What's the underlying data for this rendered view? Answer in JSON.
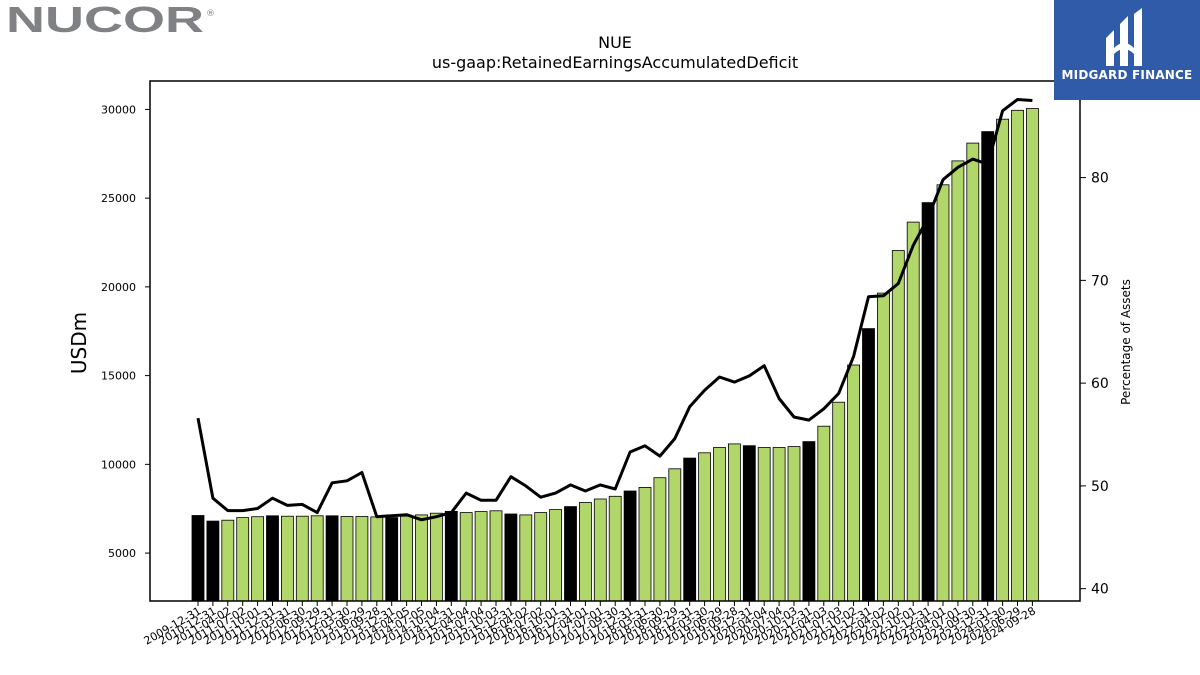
{
  "brand": {
    "left_logo_text": "NUCOR",
    "left_logo_mark": "®",
    "right_logo_text": "MIDGARD FINANCE"
  },
  "colors": {
    "bar_green": "#b1d66a",
    "bar_black": "#000000",
    "line": "#000000",
    "logo_blue": "#2f5ba8",
    "logo_grey": "#7f8185"
  },
  "chart_data": {
    "type": "bar",
    "title": "NUE",
    "subtitle": "us-gaap:RetainedEarningsAccumulatedDeficit",
    "ylabel": "USDm",
    "y2label": "Percentage of Assets",
    "ylim": [
      2300,
      31600
    ],
    "y2lim": [
      38.8,
      89.4
    ],
    "yticks": [
      5000,
      10000,
      15000,
      20000,
      25000,
      30000
    ],
    "y2ticks": [
      40,
      50,
      60,
      70,
      80
    ],
    "categories": [
      "2009-12-31",
      "2010-12-31",
      "2011-04-02",
      "2011-07-02",
      "2011-10-01",
      "2011-12-31",
      "2012-03-31",
      "2012-06-30",
      "2012-09-29",
      "2012-12-31",
      "2013-03-30",
      "2013-06-29",
      "2013-09-28",
      "2013-12-31",
      "2014-04-05",
      "2014-07-05",
      "2014-10-04",
      "2014-12-31",
      "2015-04-04",
      "2015-07-04",
      "2015-10-03",
      "2015-12-31",
      "2016-04-02",
      "2016-07-02",
      "2016-10-01",
      "2016-12-31",
      "2017-04-01",
      "2017-07-01",
      "2017-09-30",
      "2017-12-31",
      "2018-03-31",
      "2018-06-30",
      "2018-09-29",
      "2018-12-31",
      "2019-03-30",
      "2019-06-29",
      "2019-09-28",
      "2019-12-31",
      "2020-04-04",
      "2020-07-04",
      "2020-10-03",
      "2020-12-31",
      "2021-04-03",
      "2021-07-03",
      "2021-10-02",
      "2021-12-31",
      "2022-04-02",
      "2022-07-02",
      "2022-10-01",
      "2022-12-31",
      "2023-04-01",
      "2023-07-01",
      "2023-09-30",
      "2023-12-31",
      "2024-03-30",
      "2024-06-29",
      "2024-09-28"
    ],
    "annual_flags": [
      1,
      1,
      0,
      0,
      0,
      1,
      0,
      0,
      0,
      1,
      0,
      0,
      0,
      1,
      0,
      0,
      0,
      1,
      0,
      0,
      0,
      1,
      0,
      0,
      0,
      1,
      0,
      0,
      0,
      1,
      0,
      0,
      0,
      1,
      0,
      0,
      0,
      1,
      0,
      0,
      0,
      1,
      0,
      0,
      0,
      1,
      0,
      0,
      0,
      1,
      0,
      0,
      0,
      1,
      0,
      0,
      0
    ],
    "series": [
      {
        "name": "RetainedEarningsAccumulatedDeficit",
        "axis": "left",
        "values": [
          7120,
          6800,
          6850,
          7000,
          7050,
          7100,
          7080,
          7080,
          7100,
          7100,
          7060,
          7060,
          7040,
          7000,
          7080,
          7150,
          7250,
          7350,
          7280,
          7340,
          7380,
          7200,
          7150,
          7280,
          7450,
          7620,
          7850,
          8050,
          8200,
          8500,
          8700,
          9250,
          9750,
          10350,
          10650,
          10950,
          11150,
          11050,
          10950,
          10950,
          11000,
          11280,
          12150,
          13500,
          15600,
          17650,
          19650,
          22050,
          23650,
          24750,
          25750,
          27100,
          28100,
          28750,
          29450,
          29950,
          30050
        ]
      },
      {
        "name": "Percentage of Assets",
        "axis": "right",
        "values": [
          56.6,
          48.8,
          47.6,
          47.6,
          47.8,
          48.8,
          48.1,
          48.2,
          47.4,
          50.3,
          50.5,
          51.3,
          47.0,
          47.1,
          47.2,
          46.7,
          47.0,
          47.4,
          49.3,
          48.6,
          48.6,
          50.9,
          50.0,
          48.9,
          49.3,
          50.1,
          49.5,
          50.1,
          49.7,
          53.3,
          53.9,
          52.9,
          54.6,
          57.7,
          59.3,
          60.6,
          60.1,
          60.7,
          61.7,
          58.5,
          56.7,
          56.4,
          57.5,
          59.0,
          62.6,
          68.4,
          68.5,
          69.7,
          73.4,
          76.1,
          79.8,
          81.0,
          81.8,
          81.3,
          86.5,
          87.6,
          87.5
        ]
      }
    ]
  }
}
